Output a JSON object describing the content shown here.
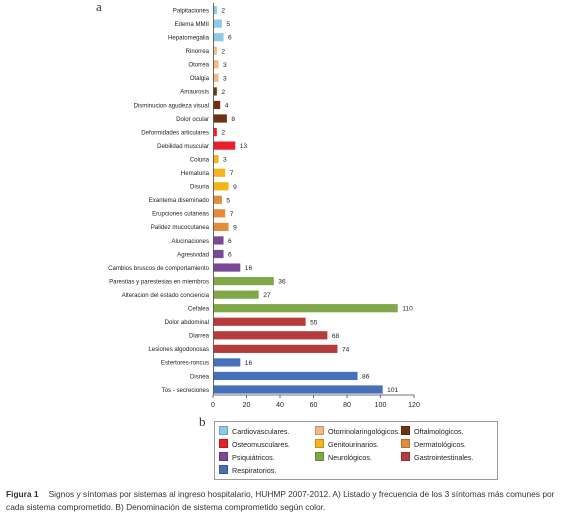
{
  "panel_labels": {
    "a": "a",
    "b": "b"
  },
  "caption": {
    "figure_number": "Figura 1",
    "text": "Signos y síntomas por sistemas al ingreso hospitalario, HUHMP 2007-2012. A) Listado y frecuencia de los 3 síntomas más comunes por cada sistema comprometido. B) Denominación de sistema comprometido según color."
  },
  "system_colors": {
    "cardio": "#8ecae6",
    "otorrino": "#f4b886",
    "oftal": "#6e3314",
    "osteo": "#e8202a",
    "genito": "#f2b51c",
    "derma": "#e58c3a",
    "psiq": "#7a4a96",
    "neuro": "#7fa849",
    "gastro": "#b53b3c",
    "resp": "#4670b8"
  },
  "legend": {
    "items": [
      {
        "label": "Cardiovasculares.",
        "system": "cardio"
      },
      {
        "label": "Otorrinolaringológicos.",
        "system": "otorrino"
      },
      {
        "label": "Oftalmológicos.",
        "system": "oftal"
      },
      {
        "label": "Osteomusculares.",
        "system": "osteo"
      },
      {
        "label": "Genitourinarios.",
        "system": "genito"
      },
      {
        "label": "Dermatológicos.",
        "system": "derma"
      },
      {
        "label": "Psiquiátricos.",
        "system": "psiq"
      },
      {
        "label": "Neurológicos.",
        "system": "neuro"
      },
      {
        "label": "Gastrointestinales.",
        "system": "gastro"
      },
      {
        "label": "Respiratorios.",
        "system": "resp"
      }
    ]
  },
  "chart_data": {
    "type": "bar",
    "orientation": "horizontal",
    "xlim": [
      0,
      120
    ],
    "xticks": [
      0,
      20,
      40,
      60,
      80,
      100,
      120
    ],
    "grid": false,
    "data_labels": true,
    "bars": [
      {
        "label": "Palpitaciones",
        "value": 2,
        "system": "cardio"
      },
      {
        "label": "Edema MMII",
        "value": 5,
        "system": "cardio"
      },
      {
        "label": "Hepatomegalia",
        "value": 6,
        "system": "cardio"
      },
      {
        "label": "Rinorrea",
        "value": 2,
        "system": "otorrino"
      },
      {
        "label": "Otorrea",
        "value": 3,
        "system": "otorrino"
      },
      {
        "label": "Otalgia",
        "value": 3,
        "system": "otorrino"
      },
      {
        "label": "Amaurosis",
        "value": 2,
        "system": "oftal"
      },
      {
        "label": "Disminucion agudeza visual",
        "value": 4,
        "system": "oftal"
      },
      {
        "label": "Dolor ocular",
        "value": 8,
        "system": "oftal"
      },
      {
        "label": "Deformidades articulares",
        "value": 2,
        "system": "osteo"
      },
      {
        "label": "Debilidad muscular",
        "value": 13,
        "system": "osteo"
      },
      {
        "label": "Coluria",
        "value": 3,
        "system": "genito"
      },
      {
        "label": "Hematuria",
        "value": 7,
        "system": "genito"
      },
      {
        "label": "Disuria",
        "value": 9,
        "system": "genito"
      },
      {
        "label": "Exantema diseminado",
        "value": 5,
        "system": "derma"
      },
      {
        "label": "Erupciones cutaneas",
        "value": 7,
        "system": "derma"
      },
      {
        "label": "Palidez mucocutanea",
        "value": 9,
        "system": "derma"
      },
      {
        "label": "Alucinaciones",
        "value": 6,
        "system": "psiq"
      },
      {
        "label": "Agresividad",
        "value": 6,
        "system": "psiq"
      },
      {
        "label": "Cambios bruscos de comportamiento",
        "value": 16,
        "system": "psiq"
      },
      {
        "label": "Parestias y parestesias en miembros",
        "value": 36,
        "system": "neuro"
      },
      {
        "label": "Alteracion del estado conciencia",
        "value": 27,
        "system": "neuro"
      },
      {
        "label": "Cefalea",
        "value": 110,
        "system": "neuro"
      },
      {
        "label": "Dolor abdominal",
        "value": 55,
        "system": "gastro"
      },
      {
        "label": "Diarrea",
        "value": 68,
        "system": "gastro"
      },
      {
        "label": "Lesiones algodonosas",
        "value": 74,
        "system": "gastro"
      },
      {
        "label": "Estertores-roncus",
        "value": 16,
        "system": "resp"
      },
      {
        "label": "Disnea",
        "value": 86,
        "system": "resp"
      },
      {
        "label": "Tos - secreciones",
        "value": 101,
        "system": "resp"
      }
    ]
  }
}
